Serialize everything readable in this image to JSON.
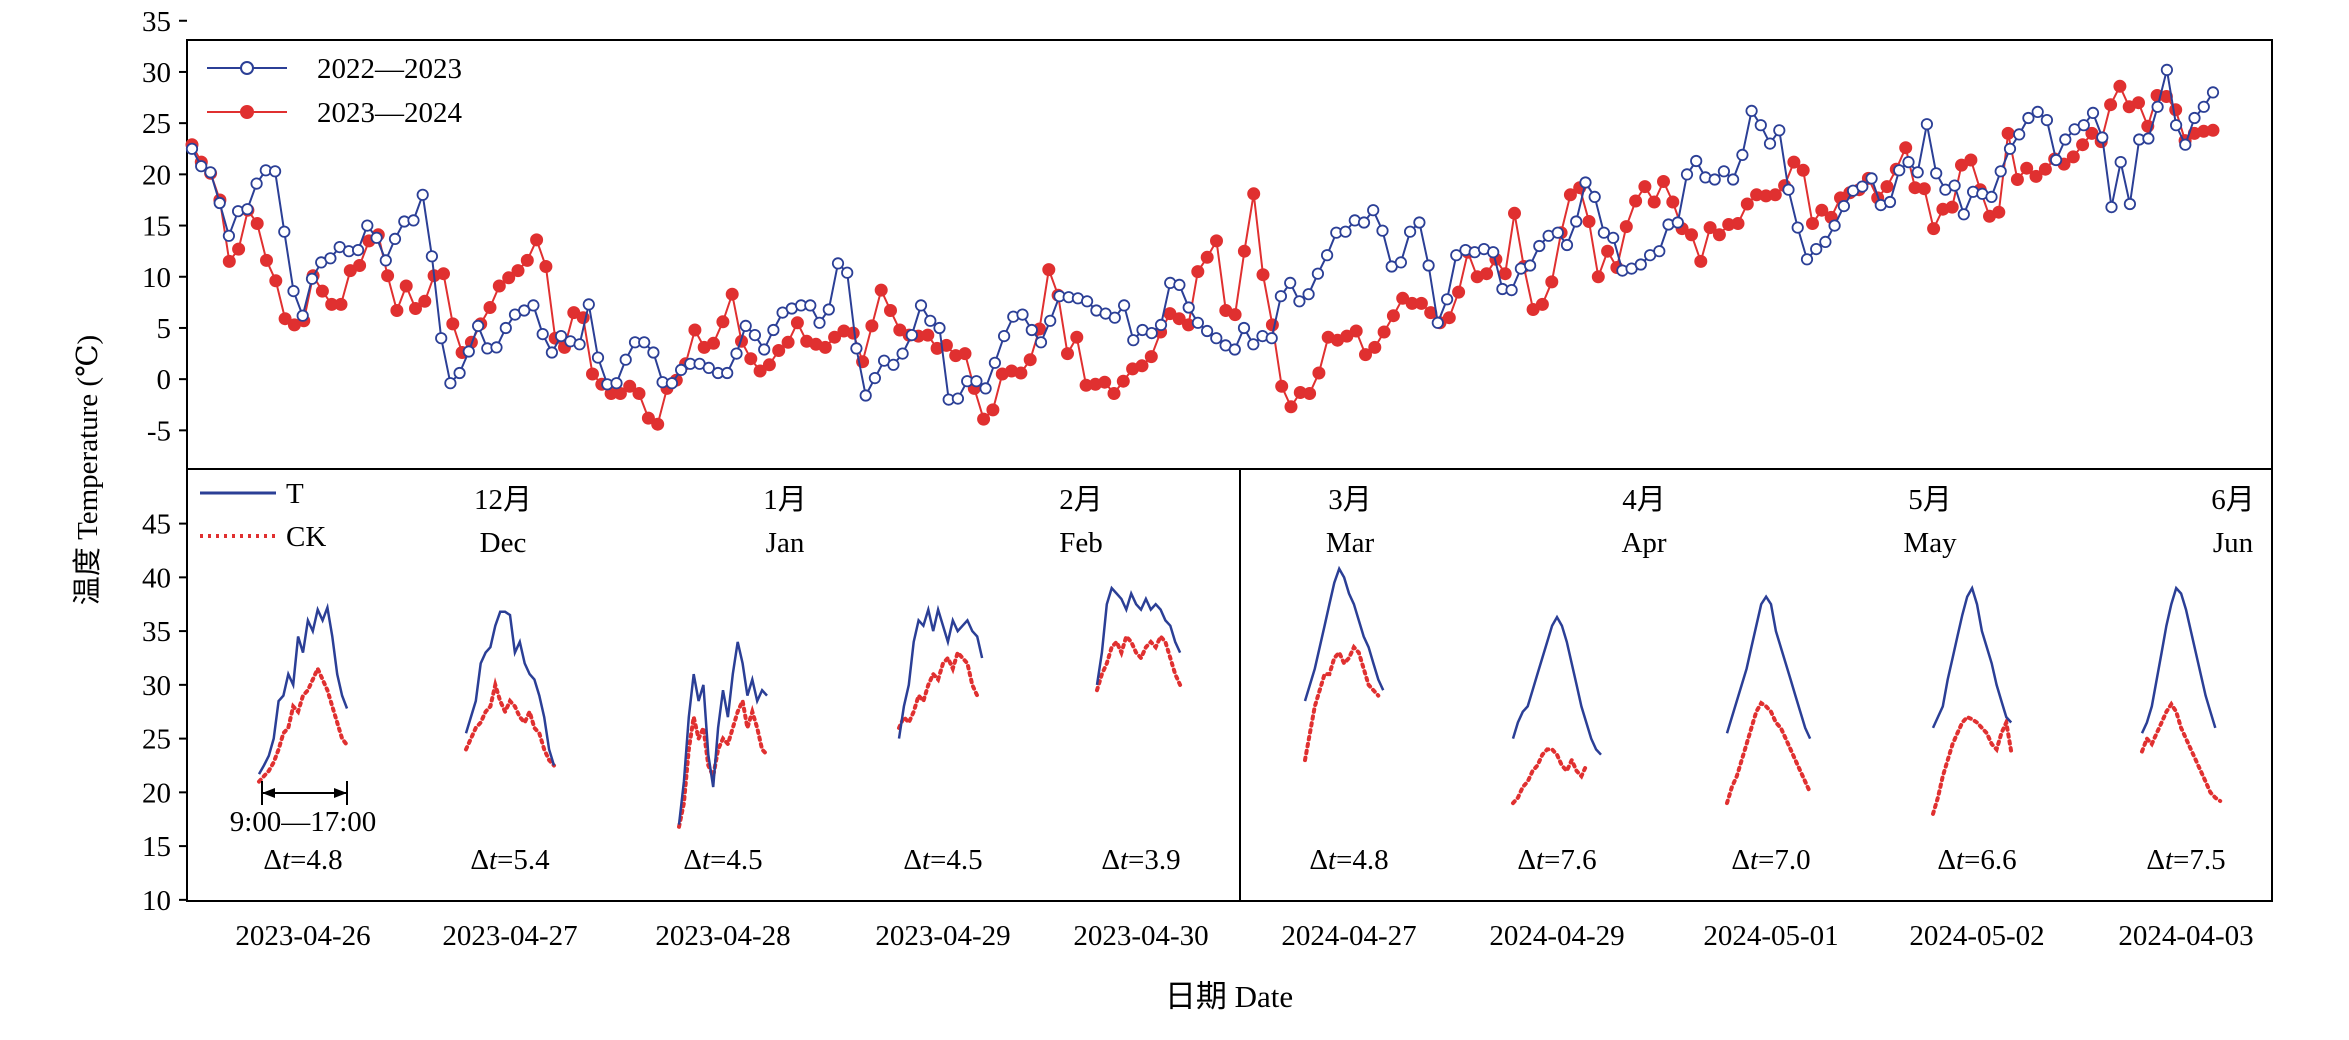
{
  "chart_data": [
    {
      "type": "line",
      "name": "daily-temperature",
      "ylabel": "温度 Temperature (℃)",
      "xlabel": "日期 Date",
      "ylim": [
        -8,
        35
      ],
      "yticks": [
        -5,
        0,
        5,
        10,
        15,
        20,
        25,
        30,
        35
      ],
      "legend_placement": "top-left",
      "series": [
        {
          "name": "2022—2023",
          "color": "#2b3f96",
          "marker": "open-circle",
          "y": [
            22.5,
            20.8,
            20.2,
            17.2,
            14.0,
            16.4,
            16.6,
            19.1,
            20.4,
            20.3,
            14.4,
            8.6,
            6.2,
            9.8,
            11.4,
            11.8,
            12.9,
            12.5,
            12.6,
            15.0,
            13.8,
            11.6,
            13.7,
            15.4,
            15.5,
            18.0,
            12.0,
            4.0,
            -0.4,
            0.6,
            2.7,
            5.2,
            3.0,
            3.1,
            5.0,
            6.3,
            6.7,
            7.2,
            4.4,
            2.6,
            4.2,
            3.7,
            3.4,
            7.3,
            2.1,
            -0.5,
            -0.4,
            1.9,
            3.6,
            3.6,
            2.6,
            -0.3,
            -0.4,
            0.9,
            1.5,
            1.5,
            1.1,
            0.6,
            0.6,
            2.5,
            5.2,
            4.3,
            2.9,
            4.8,
            6.5,
            6.9,
            7.2,
            7.2,
            5.5,
            6.8,
            11.3,
            10.4,
            3.0,
            -1.6,
            0.1,
            1.8,
            1.4,
            2.5,
            4.3,
            7.2,
            5.7,
            5.0,
            -2.0,
            -1.9,
            -0.2,
            -0.2,
            -0.9,
            1.6,
            4.2,
            6.1,
            6.3,
            4.8,
            3.6,
            5.7,
            8.1,
            8.0,
            7.9,
            7.6,
            6.7,
            6.4,
            6.0,
            7.2,
            3.8,
            4.8,
            4.5,
            5.3,
            9.4,
            9.2,
            7.0,
            5.5,
            4.7,
            4.0,
            3.3,
            2.9,
            5.0,
            3.4,
            4.2,
            4.0,
            8.1,
            9.4,
            7.6,
            8.3,
            10.3,
            12.1,
            14.3,
            14.4,
            15.5,
            15.3,
            16.5,
            14.5,
            11.0,
            11.4,
            14.4,
            15.3,
            11.1,
            5.5,
            7.8,
            12.1,
            12.6,
            12.4,
            12.7,
            12.4,
            8.8,
            8.7,
            10.8,
            11.1,
            13.0,
            14.0,
            14.3,
            13.1,
            15.4,
            19.2,
            17.8,
            14.3,
            13.8,
            10.6,
            10.8,
            11.2,
            12.1,
            12.5,
            15.1,
            15.3,
            20.0,
            21.3,
            19.7,
            19.5,
            20.3,
            19.5,
            21.9,
            26.2,
            24.8,
            23.0,
            24.3,
            18.5,
            14.8,
            11.7,
            12.7,
            13.4,
            15.0,
            16.9,
            18.4,
            18.8,
            19.6,
            17.0,
            17.3,
            20.4,
            21.2,
            20.2,
            24.9,
            20.1,
            18.5,
            18.9,
            16.1,
            18.3,
            18.1,
            17.8,
            20.3,
            22.5,
            23.9,
            25.5,
            26.1,
            25.3,
            21.4,
            23.4,
            24.4,
            24.8,
            26.0,
            23.6,
            16.8,
            21.2,
            17.1,
            23.4,
            23.5,
            26.6,
            30.2,
            24.8,
            22.9,
            25.5,
            26.6,
            28.0
          ]
        },
        {
          "name": "2023—2024",
          "color": "#e03030",
          "marker": "filled-circle",
          "y": [
            22.9,
            21.2,
            20.1,
            17.5,
            11.5,
            12.7,
            16.5,
            15.2,
            11.6,
            9.6,
            5.9,
            5.3,
            5.7,
            10.1,
            8.6,
            7.3,
            7.3,
            10.6,
            11.1,
            13.5,
            14.1,
            10.1,
            6.7,
            9.1,
            6.9,
            7.6,
            10.1,
            10.3,
            5.4,
            2.6,
            3.6,
            5.4,
            7.0,
            9.1,
            9.9,
            10.6,
            11.6,
            13.6,
            11.0,
            4.0,
            3.1,
            6.5,
            6.0,
            0.5,
            -0.5,
            -1.4,
            -1.4,
            -0.7,
            -1.4,
            -3.8,
            -4.4,
            -0.9,
            -0.1,
            1.5,
            4.8,
            3.1,
            3.5,
            5.6,
            8.3,
            3.7,
            2.0,
            0.8,
            1.4,
            2.8,
            3.6,
            5.5,
            3.7,
            3.4,
            3.1,
            4.1,
            4.7,
            4.5,
            1.7,
            5.2,
            8.7,
            6.7,
            4.8,
            4.3,
            4.2,
            4.3,
            3.0,
            3.3,
            2.3,
            2.5,
            -0.9,
            -3.9,
            -3.0,
            0.5,
            0.8,
            0.6,
            1.9,
            4.9,
            10.7,
            8.2,
            2.5,
            4.1,
            -0.6,
            -0.5,
            -0.3,
            -1.4,
            -0.2,
            1.0,
            1.3,
            2.2,
            4.6,
            6.4,
            5.9,
            5.3,
            10.5,
            11.9,
            13.5,
            6.7,
            6.3,
            12.5,
            18.1,
            10.2,
            5.3,
            -0.7,
            -2.7,
            -1.3,
            -1.4,
            0.6,
            4.1,
            3.8,
            4.2,
            4.7,
            2.4,
            3.1,
            4.6,
            6.2,
            7.9,
            7.4,
            7.4,
            6.5,
            5.5,
            6.0,
            8.5,
            12.4,
            10.0,
            10.3,
            11.7,
            10.3,
            16.2,
            11.0,
            6.8,
            7.3,
            9.5,
            14.3,
            18.0,
            18.7,
            15.4,
            10.0,
            12.5,
            10.9,
            14.9,
            17.4,
            18.8,
            17.3,
            19.3,
            17.3,
            14.7,
            14.1,
            11.5,
            14.8,
            14.1,
            15.1,
            15.2,
            17.1,
            18.0,
            17.9,
            18.0,
            18.9,
            21.2,
            20.4,
            15.2,
            16.5,
            15.8,
            17.7,
            18.2,
            18.5,
            19.6,
            17.7,
            18.8,
            20.5,
            22.6,
            18.7,
            18.6,
            14.7,
            16.6,
            16.8,
            20.9,
            21.4,
            18.5,
            15.9,
            16.3,
            24.0,
            19.5,
            20.6,
            19.8,
            20.5,
            21.5,
            21.0,
            21.7,
            22.9,
            24.0,
            23.2,
            26.8,
            28.6,
            26.6,
            27.0,
            24.7,
            27.7,
            27.6,
            26.3,
            23.3,
            24.0,
            24.2,
            24.3
          ]
        }
      ]
    },
    {
      "type": "line",
      "name": "diurnal-temperature",
      "xlabel": "",
      "ylabel": "",
      "ylim": [
        10,
        50
      ],
      "yticks": [
        10,
        15,
        20,
        25,
        30,
        35,
        40,
        45
      ],
      "legend_placement": "top-left",
      "series_legend": [
        {
          "name": "T",
          "color": "#2b3f96",
          "style": "solid"
        },
        {
          "name": "CK",
          "color": "#e03030",
          "style": "dotted"
        }
      ],
      "span_annotation": "9:00—17:00",
      "months": [
        {
          "zh": "12月",
          "en": "Dec"
        },
        {
          "zh": "1月",
          "en": "Jan"
        },
        {
          "zh": "2月",
          "en": "Feb"
        },
        {
          "zh": "3月",
          "en": "Mar"
        },
        {
          "zh": "4月",
          "en": "Apr"
        },
        {
          "zh": "5月",
          "en": "May"
        },
        {
          "zh": "6月",
          "en": "Jun"
        }
      ],
      "panels": [
        {
          "date": "2023-04-26",
          "dt": "4.8",
          "T": [
            21.7,
            22.5,
            23.4,
            25.0,
            28.5,
            29.0,
            31.0,
            30.0,
            34.5,
            33.0,
            36.0,
            35.0,
            37.0,
            36.0,
            37.2,
            34.5,
            31.0,
            29.0,
            27.8
          ],
          "CK": [
            21.0,
            21.5,
            22.0,
            22.8,
            24.0,
            25.5,
            26.0,
            28.0,
            27.5,
            29.0,
            29.5,
            30.5,
            31.5,
            30.5,
            29.5,
            28.0,
            26.5,
            25.0,
            24.4
          ]
        },
        {
          "date": "2023-04-27",
          "dt": "5.4",
          "T": [
            25.5,
            27.0,
            28.5,
            32.0,
            33.0,
            33.5,
            35.5,
            36.8,
            36.8,
            36.5,
            33.0,
            34.0,
            32.0,
            31.0,
            30.5,
            29.0,
            27.0,
            24.0,
            22.5
          ],
          "CK": [
            24.0,
            25.0,
            26.0,
            26.5,
            27.5,
            28.0,
            30.0,
            28.5,
            27.5,
            28.5,
            28.0,
            27.0,
            26.5,
            27.5,
            26.0,
            25.5,
            24.0,
            23.0,
            22.5
          ]
        },
        {
          "date": "2023-04-28",
          "dt": "4.5",
          "T": [
            17.0,
            21.0,
            27.0,
            31.0,
            28.5,
            30.0,
            23.5,
            20.5,
            26.0,
            29.5,
            27.0,
            31.0,
            34.0,
            32.0,
            29.0,
            30.5,
            28.5,
            29.5,
            29.0
          ],
          "CK": [
            16.8,
            19.0,
            24.0,
            27.0,
            25.0,
            26.0,
            22.5,
            21.5,
            24.0,
            25.0,
            24.5,
            26.0,
            27.5,
            28.5,
            26.0,
            27.5,
            26.0,
            24.0,
            23.5
          ]
        },
        {
          "date": "2023-04-29",
          "dt": "4.5",
          "T": [
            25.0,
            28.0,
            30.0,
            34.0,
            36.0,
            35.5,
            37.0,
            35.0,
            37.0,
            35.5,
            34.0,
            36.0,
            35.0,
            35.5,
            36.0,
            35.0,
            34.5,
            32.5,
            null
          ],
          "CK": [
            26.0,
            27.0,
            26.5,
            27.5,
            29.0,
            28.5,
            30.0,
            31.0,
            30.5,
            32.0,
            32.5,
            31.5,
            33.0,
            32.5,
            32.0,
            30.0,
            29.0,
            null,
            null
          ]
        },
        {
          "date": "2023-04-30",
          "dt": "3.9",
          "T": [
            30.0,
            33.0,
            37.5,
            39.0,
            38.5,
            38.0,
            37.0,
            38.5,
            37.5,
            37.0,
            38.0,
            37.0,
            37.5,
            37.0,
            36.0,
            35.5,
            34.0,
            33.0,
            null
          ],
          "CK": [
            29.5,
            31.0,
            32.0,
            33.5,
            34.0,
            33.0,
            34.5,
            34.0,
            33.0,
            32.5,
            33.5,
            34.0,
            33.5,
            34.5,
            34.0,
            32.5,
            31.0,
            30.0,
            null
          ]
        },
        {
          "date": "2024-04-27",
          "dt": "4.8",
          "T": [
            28.5,
            30.0,
            31.5,
            33.5,
            35.5,
            37.5,
            39.5,
            40.8,
            40.0,
            38.5,
            37.5,
            36.0,
            34.5,
            33.5,
            32.0,
            30.5,
            29.5,
            null,
            null
          ],
          "CK": [
            23.0,
            25.5,
            28.0,
            29.5,
            31.0,
            31.0,
            32.5,
            33.0,
            32.0,
            32.5,
            33.5,
            33.0,
            31.5,
            30.0,
            29.5,
            29.0,
            null,
            null,
            null
          ]
        },
        {
          "date": "2024-04-29",
          "dt": "7.6",
          "T": [
            25.0,
            26.5,
            27.5,
            28.0,
            29.5,
            31.0,
            32.5,
            34.0,
            35.5,
            36.3,
            35.5,
            34.0,
            32.0,
            30.0,
            28.0,
            26.5,
            25.0,
            24.0,
            23.5
          ],
          "CK": [
            19.0,
            19.5,
            20.5,
            21.0,
            22.0,
            22.5,
            23.5,
            24.0,
            24.0,
            23.5,
            22.5,
            22.0,
            23.0,
            22.0,
            21.5,
            22.5,
            null,
            null,
            null
          ]
        },
        {
          "date": "2024-05-01",
          "dt": "7.0",
          "T": [
            25.5,
            27.0,
            28.5,
            30.0,
            31.5,
            33.5,
            35.5,
            37.5,
            38.2,
            37.5,
            35.0,
            33.5,
            32.0,
            30.5,
            29.0,
            27.5,
            26.0,
            25.0,
            null
          ],
          "CK": [
            19.0,
            20.5,
            21.5,
            23.0,
            24.5,
            26.0,
            27.5,
            28.3,
            28.0,
            27.5,
            26.5,
            26.0,
            25.0,
            24.0,
            23.0,
            22.0,
            21.0,
            20.0,
            null
          ]
        },
        {
          "date": "2024-05-02",
          "dt": "6.6",
          "T": [
            26.0,
            27.0,
            28.0,
            30.5,
            32.5,
            34.5,
            36.5,
            38.2,
            39.0,
            37.5,
            35.0,
            33.5,
            32.0,
            30.0,
            28.5,
            27.0,
            26.5,
            null,
            null
          ],
          "CK": [
            18.0,
            19.5,
            21.5,
            23.0,
            24.5,
            25.5,
            26.5,
            27.0,
            26.8,
            26.5,
            26.0,
            25.5,
            24.5,
            24.0,
            25.5,
            26.5,
            23.8,
            null,
            null
          ]
        },
        {
          "date": "2024-04-03",
          "dt": "7.5",
          "T": [
            25.5,
            26.5,
            28.0,
            30.5,
            33.0,
            35.5,
            37.5,
            39.0,
            38.5,
            37.0,
            35.0,
            33.0,
            31.0,
            29.0,
            27.5,
            26.0,
            null,
            null,
            null
          ],
          "CK": [
            23.8,
            25.0,
            24.5,
            25.5,
            26.5,
            27.5,
            28.2,
            27.5,
            26.0,
            25.0,
            24.0,
            23.0,
            22.0,
            21.0,
            20.0,
            19.5,
            19.2,
            null,
            null
          ]
        }
      ]
    }
  ]
}
